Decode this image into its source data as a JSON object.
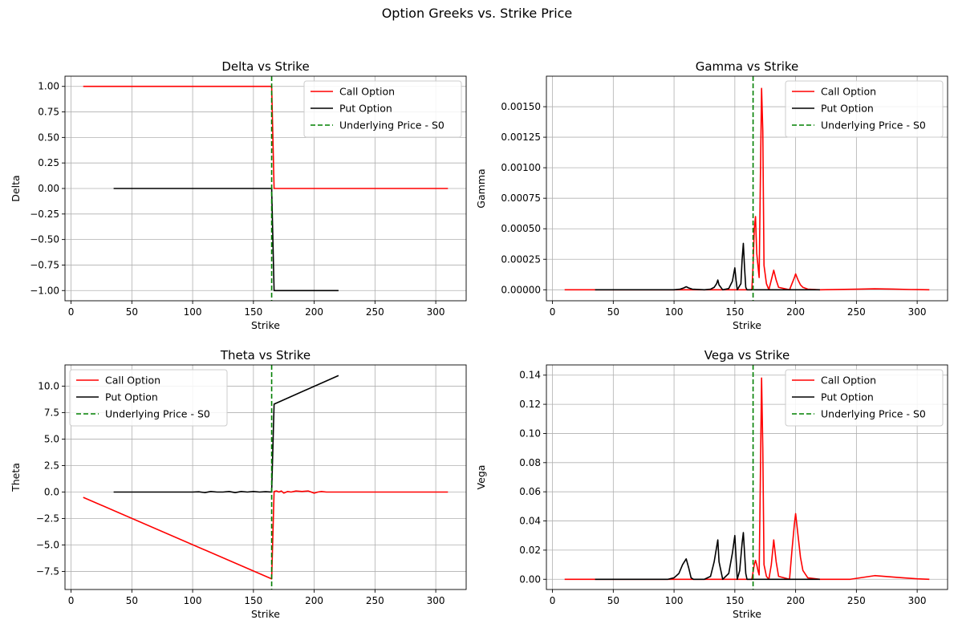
{
  "figure": {
    "suptitle": "Option Greeks vs. Strike Price",
    "colors": {
      "call": "#ff0000",
      "put": "#000000",
      "spot": "#008000",
      "grid": "#b0b0b0"
    },
    "legend_labels": [
      "Call Option",
      "Put Option",
      "Underlying Price - S0"
    ]
  },
  "chart_data": [
    {
      "type": "line",
      "title": "Delta vs Strike",
      "xlabel": "Strike",
      "ylabel": "Delta",
      "xlim": [
        -5,
        325
      ],
      "ylim": [
        -1.1,
        1.1
      ],
      "xticks": [
        0,
        50,
        100,
        150,
        200,
        250,
        300
      ],
      "yticks": [
        -1.0,
        -0.75,
        -0.5,
        -0.25,
        0.0,
        0.25,
        0.5,
        0.75,
        1.0
      ],
      "ytick_labels": [
        "−1.00",
        "−0.75",
        "−0.50",
        "−0.25",
        "0.00",
        "0.25",
        "0.50",
        "0.75",
        "1.00"
      ],
      "grid": true,
      "legend": "top-right",
      "vline": {
        "name": "Underlying Price - S0",
        "x": 165
      },
      "series": [
        {
          "name": "Call Option",
          "x": [
            10,
            165,
            167,
            310
          ],
          "y": [
            1.0,
            1.0,
            0.0,
            0.0
          ]
        },
        {
          "name": "Put Option",
          "x": [
            35,
            165,
            167,
            220
          ],
          "y": [
            0.0,
            0.0,
            -1.0,
            -1.0
          ]
        }
      ]
    },
    {
      "type": "line",
      "title": "Gamma vs Strike",
      "xlabel": "Strike",
      "ylabel": "Gamma",
      "xlim": [
        -5,
        325
      ],
      "ylim": [
        -9e-05,
        0.00175
      ],
      "xticks": [
        0,
        50,
        100,
        150,
        200,
        250,
        300
      ],
      "yticks": [
        0.0,
        0.00025,
        0.0005,
        0.00075,
        0.001,
        0.00125,
        0.0015
      ],
      "ytick_labels": [
        "0.00000",
        "0.00025",
        "0.00050",
        "0.00075",
        "0.00100",
        "0.00125",
        "0.00150"
      ],
      "grid": true,
      "legend": "top-right",
      "vline": {
        "name": "Underlying Price - S0",
        "x": 165
      },
      "series": [
        {
          "name": "Call Option",
          "x": [
            10,
            160,
            164,
            165,
            166,
            167,
            168,
            169,
            170,
            171,
            172,
            173,
            174,
            176,
            178,
            180,
            182,
            184,
            186,
            195,
            197,
            199,
            200,
            202,
            204,
            206,
            210,
            220,
            250,
            265,
            280,
            295,
            310
          ],
          "y": [
            0,
            0,
            0,
            0.0002,
            0.0005,
            0.0006,
            0.0003,
            0.0002,
            0.0001,
            0.0009,
            0.00165,
            0.0013,
            0.0002,
            5e-05,
            0,
            8e-05,
            0.00016,
            8e-05,
            2e-05,
            0,
            5e-05,
            0.0001,
            0.00013,
            8e-05,
            4e-05,
            2e-05,
            5e-06,
            0,
            5e-06,
            8e-06,
            6e-06,
            2e-06,
            0
          ]
        },
        {
          "name": "Put Option",
          "x": [
            35,
            100,
            105,
            108,
            110,
            112,
            115,
            125,
            130,
            133,
            135,
            136,
            137,
            140,
            145,
            148,
            150,
            151,
            152,
            155,
            156,
            157,
            158,
            159,
            160,
            164,
            166,
            170,
            180,
            200,
            220
          ],
          "y": [
            0,
            0,
            5e-06,
            1.5e-05,
            2.5e-05,
            1.5e-05,
            5e-06,
            0,
            5e-06,
            2e-05,
            5e-05,
            8e-05,
            4e-05,
            0,
            1e-05,
            7e-05,
            0.00018,
            8e-05,
            0,
            5e-05,
            0.00025,
            0.00038,
            0.00018,
            2e-05,
            0,
            0,
            0,
            0,
            0,
            0,
            0
          ]
        }
      ]
    },
    {
      "type": "line",
      "title": "Theta vs Strike",
      "xlabel": "Strike",
      "ylabel": "Theta",
      "xlim": [
        -5,
        325
      ],
      "ylim": [
        -9.2,
        12.0
      ],
      "xticks": [
        0,
        50,
        100,
        150,
        200,
        250,
        300
      ],
      "yticks": [
        -7.5,
        -5.0,
        -2.5,
        0.0,
        2.5,
        5.0,
        7.5,
        10.0
      ],
      "ytick_labels": [
        "−7.5",
        "−5.0",
        "−2.5",
        "0.0",
        "2.5",
        "5.0",
        "7.5",
        "10.0"
      ],
      "grid": true,
      "legend": "top-left",
      "vline": {
        "name": "Underlying Price - S0",
        "x": 165
      },
      "series": [
        {
          "name": "Call Option",
          "x": [
            10,
            165,
            167,
            169,
            171,
            173,
            175,
            178,
            181,
            185,
            190,
            195,
            200,
            203,
            206,
            210,
            220,
            250,
            280,
            310
          ],
          "y": [
            -0.5,
            -8.2,
            0.05,
            0.1,
            0.0,
            0.1,
            -0.1,
            0.05,
            0.0,
            0.1,
            0.05,
            0.1,
            -0.1,
            0.0,
            0.05,
            0.0,
            0.0,
            0.0,
            0.0,
            0.0
          ]
        },
        {
          "name": "Put Option",
          "x": [
            35,
            100,
            105,
            110,
            115,
            120,
            125,
            130,
            135,
            140,
            145,
            150,
            155,
            160,
            165,
            167,
            220
          ],
          "y": [
            0.0,
            0.0,
            0.02,
            -0.05,
            0.05,
            0.0,
            0.0,
            0.05,
            -0.05,
            0.05,
            0.0,
            0.05,
            0.0,
            0.03,
            0.0,
            8.3,
            11.0
          ]
        }
      ]
    },
    {
      "type": "line",
      "title": "Vega vs Strike",
      "xlabel": "Strike",
      "ylabel": "Vega",
      "xlim": [
        -5,
        325
      ],
      "ylim": [
        -0.007,
        0.147
      ],
      "xticks": [
        0,
        50,
        100,
        150,
        200,
        250,
        300
      ],
      "yticks": [
        0.0,
        0.02,
        0.04,
        0.06,
        0.08,
        0.1,
        0.12,
        0.14
      ],
      "ytick_labels": [
        "0.00",
        "0.02",
        "0.04",
        "0.06",
        "0.08",
        "0.10",
        "0.12",
        "0.14"
      ],
      "grid": true,
      "legend": "top-right",
      "vline": {
        "name": "Underlying Price - S0",
        "x": 165
      },
      "series": [
        {
          "name": "Call Option",
          "x": [
            10,
            160,
            164,
            165,
            166,
            167,
            168,
            169,
            170,
            171,
            172,
            173,
            174,
            176,
            178,
            180,
            182,
            184,
            186,
            195,
            197,
            199,
            200,
            202,
            204,
            206,
            210,
            220,
            245,
            265,
            285,
            300,
            310
          ],
          "y": [
            0,
            0,
            0,
            0.005,
            0.01,
            0.013,
            0.01,
            0.006,
            0.003,
            0.07,
            0.138,
            0.09,
            0.01,
            0.002,
            0,
            0.01,
            0.027,
            0.012,
            0.002,
            0,
            0.02,
            0.038,
            0.045,
            0.03,
            0.015,
            0.006,
            0.001,
            0,
            0,
            0.0025,
            0.0012,
            0.0003,
            0
          ]
        },
        {
          "name": "Put Option",
          "x": [
            35,
            95,
            100,
            104,
            107,
            110,
            112,
            114,
            116,
            125,
            130,
            133,
            135,
            136,
            137,
            140,
            145,
            148,
            150,
            151,
            152,
            154,
            156,
            157,
            158,
            159,
            160,
            164,
            166,
            180,
            200,
            220
          ],
          "y": [
            0,
            0,
            0.001,
            0.004,
            0.01,
            0.014,
            0.008,
            0.001,
            0,
            0,
            0.002,
            0.012,
            0.022,
            0.027,
            0.012,
            0,
            0.004,
            0.018,
            0.03,
            0.015,
            0,
            0.006,
            0.025,
            0.032,
            0.018,
            0.004,
            0,
            0,
            0,
            0,
            0,
            0
          ]
        }
      ]
    }
  ]
}
